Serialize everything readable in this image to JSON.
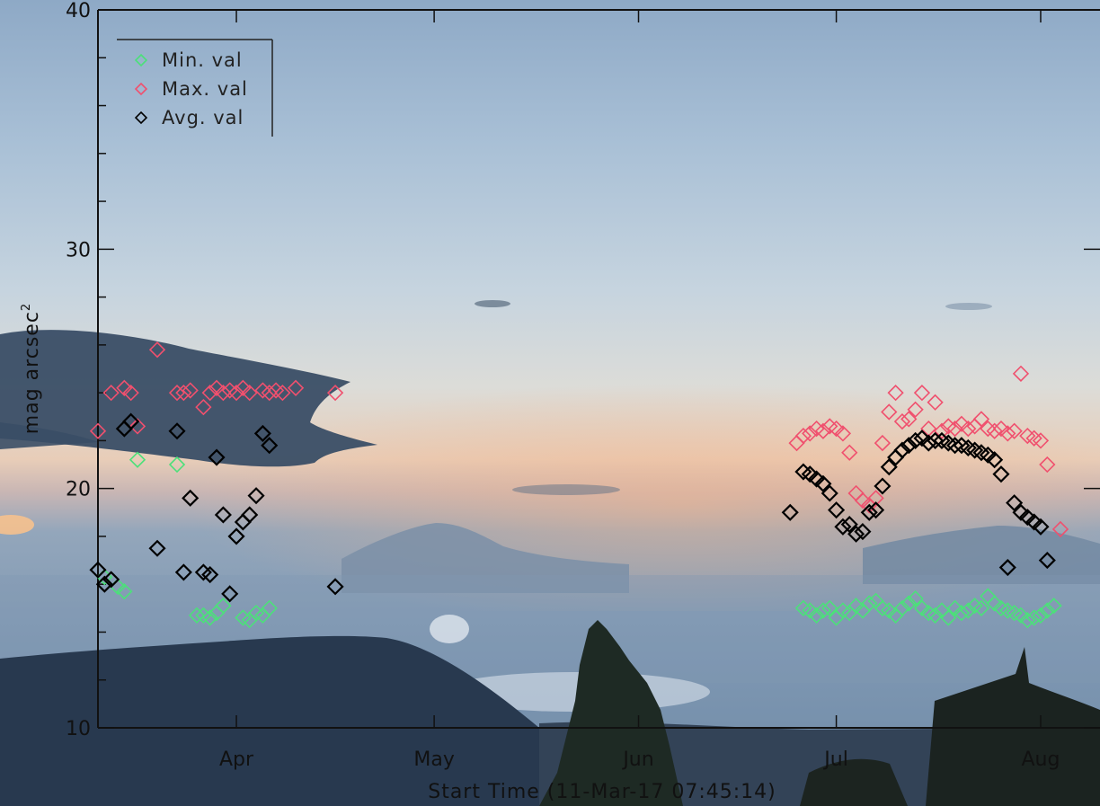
{
  "chart_data": {
    "type": "scatter",
    "title": "",
    "xlabel": "Start Time (11-Mar-17 07:45:14)",
    "ylabel": "mag arcsec",
    "ylabel_superscript": "2",
    "xlim": [
      "2017-03-11",
      "2017-08-10"
    ],
    "ylim": [
      10,
      40
    ],
    "x_ticks": [
      {
        "label": "Apr",
        "date": "2017-04-01"
      },
      {
        "label": "May",
        "date": "2017-05-01"
      },
      {
        "label": "Jun",
        "date": "2017-06-01"
      },
      {
        "label": "Jul",
        "date": "2017-07-01"
      },
      {
        "label": "Aug",
        "date": "2017-08-01"
      }
    ],
    "y_ticks": [
      10,
      20,
      30,
      40
    ],
    "grid": false,
    "legend": "top-left",
    "marker": "diamond",
    "series": [
      {
        "name": "Min. val",
        "color": "#4ce07a",
        "points": [
          [
            "2017-03-12",
            16.3
          ],
          [
            "2017-03-14",
            15.9
          ],
          [
            "2017-03-15",
            15.7
          ],
          [
            "2017-03-17",
            21.2
          ],
          [
            "2017-03-23",
            21.0
          ],
          [
            "2017-03-26",
            14.7
          ],
          [
            "2017-03-27",
            14.7
          ],
          [
            "2017-03-28",
            14.6
          ],
          [
            "2017-03-29",
            14.8
          ],
          [
            "2017-03-30",
            15.1
          ],
          [
            "2017-04-02",
            14.6
          ],
          [
            "2017-04-03",
            14.5
          ],
          [
            "2017-04-04",
            14.8
          ],
          [
            "2017-04-05",
            14.7
          ],
          [
            "2017-04-06",
            15.0
          ],
          [
            "2017-06-26",
            15.0
          ],
          [
            "2017-06-27",
            14.9
          ],
          [
            "2017-06-28",
            14.7
          ],
          [
            "2017-06-29",
            14.9
          ],
          [
            "2017-06-30",
            15.0
          ],
          [
            "2017-07-01",
            14.6
          ],
          [
            "2017-07-02",
            14.9
          ],
          [
            "2017-07-03",
            14.8
          ],
          [
            "2017-07-04",
            15.1
          ],
          [
            "2017-07-05",
            14.9
          ],
          [
            "2017-07-06",
            15.2
          ],
          [
            "2017-07-07",
            15.3
          ],
          [
            "2017-07-08",
            15.0
          ],
          [
            "2017-07-09",
            14.9
          ],
          [
            "2017-07-10",
            14.7
          ],
          [
            "2017-07-11",
            15.0
          ],
          [
            "2017-07-12",
            15.2
          ],
          [
            "2017-07-13",
            15.4
          ],
          [
            "2017-07-14",
            15.0
          ],
          [
            "2017-07-15",
            14.8
          ],
          [
            "2017-07-16",
            14.7
          ],
          [
            "2017-07-17",
            14.9
          ],
          [
            "2017-07-18",
            14.6
          ],
          [
            "2017-07-19",
            15.0
          ],
          [
            "2017-07-20",
            14.8
          ],
          [
            "2017-07-21",
            14.9
          ],
          [
            "2017-07-22",
            15.1
          ],
          [
            "2017-07-23",
            15.0
          ],
          [
            "2017-07-24",
            15.5
          ],
          [
            "2017-07-25",
            15.2
          ],
          [
            "2017-07-26",
            15.0
          ],
          [
            "2017-07-27",
            14.9
          ],
          [
            "2017-07-28",
            14.8
          ],
          [
            "2017-07-29",
            14.7
          ],
          [
            "2017-07-30",
            14.5
          ],
          [
            "2017-07-31",
            14.6
          ],
          [
            "2017-08-01",
            14.7
          ],
          [
            "2017-08-02",
            14.9
          ],
          [
            "2017-08-03",
            15.1
          ]
        ]
      },
      {
        "name": "Max. val",
        "color": "#f0506e",
        "points": [
          [
            "2017-03-11",
            22.4
          ],
          [
            "2017-03-13",
            24.0
          ],
          [
            "2017-03-15",
            24.2
          ],
          [
            "2017-03-16",
            24.0
          ],
          [
            "2017-03-17",
            22.6
          ],
          [
            "2017-03-20",
            25.8
          ],
          [
            "2017-03-23",
            24.0
          ],
          [
            "2017-03-24",
            24.0
          ],
          [
            "2017-03-25",
            24.1
          ],
          [
            "2017-03-27",
            23.4
          ],
          [
            "2017-03-28",
            24.0
          ],
          [
            "2017-03-29",
            24.2
          ],
          [
            "2017-03-30",
            24.0
          ],
          [
            "2017-03-31",
            24.1
          ],
          [
            "2017-04-01",
            24.0
          ],
          [
            "2017-04-02",
            24.2
          ],
          [
            "2017-04-03",
            24.0
          ],
          [
            "2017-04-05",
            24.1
          ],
          [
            "2017-04-06",
            24.0
          ],
          [
            "2017-04-07",
            24.1
          ],
          [
            "2017-04-08",
            24.0
          ],
          [
            "2017-04-10",
            24.2
          ],
          [
            "2017-04-16",
            24.0
          ],
          [
            "2017-06-25",
            21.9
          ],
          [
            "2017-06-26",
            22.2
          ],
          [
            "2017-06-27",
            22.3
          ],
          [
            "2017-06-28",
            22.5
          ],
          [
            "2017-06-29",
            22.4
          ],
          [
            "2017-06-30",
            22.6
          ],
          [
            "2017-07-01",
            22.5
          ],
          [
            "2017-07-02",
            22.3
          ],
          [
            "2017-07-03",
            21.5
          ],
          [
            "2017-07-04",
            19.8
          ],
          [
            "2017-07-05",
            19.5
          ],
          [
            "2017-07-06",
            19.3
          ],
          [
            "2017-07-07",
            19.6
          ],
          [
            "2017-07-08",
            21.9
          ],
          [
            "2017-07-09",
            23.2
          ],
          [
            "2017-07-10",
            24.0
          ],
          [
            "2017-07-11",
            22.8
          ],
          [
            "2017-07-12",
            22.9
          ],
          [
            "2017-07-13",
            23.3
          ],
          [
            "2017-07-14",
            24.0
          ],
          [
            "2017-07-15",
            22.5
          ],
          [
            "2017-07-16",
            23.6
          ],
          [
            "2017-07-17",
            22.4
          ],
          [
            "2017-07-18",
            22.6
          ],
          [
            "2017-07-19",
            22.5
          ],
          [
            "2017-07-20",
            22.7
          ],
          [
            "2017-07-21",
            22.5
          ],
          [
            "2017-07-22",
            22.6
          ],
          [
            "2017-07-23",
            22.9
          ],
          [
            "2017-07-24",
            22.5
          ],
          [
            "2017-07-25",
            22.4
          ],
          [
            "2017-07-26",
            22.5
          ],
          [
            "2017-07-27",
            22.3
          ],
          [
            "2017-07-28",
            22.4
          ],
          [
            "2017-07-29",
            24.8
          ],
          [
            "2017-07-30",
            22.2
          ],
          [
            "2017-07-31",
            22.1
          ],
          [
            "2017-08-01",
            22.0
          ],
          [
            "2017-08-02",
            21.0
          ],
          [
            "2017-08-04",
            18.3
          ]
        ]
      },
      {
        "name": "Avg. val",
        "color": "#000000",
        "points": [
          [
            "2017-03-11",
            16.6
          ],
          [
            "2017-03-12",
            16.0
          ],
          [
            "2017-03-13",
            16.2
          ],
          [
            "2017-03-15",
            22.5
          ],
          [
            "2017-03-16",
            22.8
          ],
          [
            "2017-03-20",
            17.5
          ],
          [
            "2017-03-23",
            22.4
          ],
          [
            "2017-03-24",
            16.5
          ],
          [
            "2017-03-25",
            19.6
          ],
          [
            "2017-03-27",
            16.5
          ],
          [
            "2017-03-28",
            16.4
          ],
          [
            "2017-03-29",
            21.3
          ],
          [
            "2017-03-30",
            18.9
          ],
          [
            "2017-03-31",
            15.6
          ],
          [
            "2017-04-01",
            18.0
          ],
          [
            "2017-04-02",
            18.6
          ],
          [
            "2017-04-03",
            18.9
          ],
          [
            "2017-04-04",
            19.7
          ],
          [
            "2017-04-05",
            22.3
          ],
          [
            "2017-04-06",
            21.8
          ],
          [
            "2017-04-16",
            15.9
          ],
          [
            "2017-06-24",
            19.0
          ],
          [
            "2017-06-26",
            20.7
          ],
          [
            "2017-06-27",
            20.6
          ],
          [
            "2017-06-28",
            20.4
          ],
          [
            "2017-06-29",
            20.2
          ],
          [
            "2017-06-30",
            19.8
          ],
          [
            "2017-07-01",
            19.1
          ],
          [
            "2017-07-02",
            18.4
          ],
          [
            "2017-07-03",
            18.5
          ],
          [
            "2017-07-04",
            18.1
          ],
          [
            "2017-07-05",
            18.2
          ],
          [
            "2017-07-06",
            19.0
          ],
          [
            "2017-07-07",
            19.1
          ],
          [
            "2017-07-08",
            20.1
          ],
          [
            "2017-07-09",
            20.9
          ],
          [
            "2017-07-10",
            21.3
          ],
          [
            "2017-07-11",
            21.6
          ],
          [
            "2017-07-12",
            21.8
          ],
          [
            "2017-07-13",
            22.0
          ],
          [
            "2017-07-14",
            22.1
          ],
          [
            "2017-07-15",
            21.9
          ],
          [
            "2017-07-16",
            22.0
          ],
          [
            "2017-07-17",
            22.0
          ],
          [
            "2017-07-18",
            21.9
          ],
          [
            "2017-07-19",
            21.8
          ],
          [
            "2017-07-20",
            21.8
          ],
          [
            "2017-07-21",
            21.7
          ],
          [
            "2017-07-22",
            21.6
          ],
          [
            "2017-07-23",
            21.5
          ],
          [
            "2017-07-24",
            21.4
          ],
          [
            "2017-07-25",
            21.2
          ],
          [
            "2017-07-26",
            20.6
          ],
          [
            "2017-07-27",
            16.7
          ],
          [
            "2017-07-28",
            19.4
          ],
          [
            "2017-07-29",
            19.0
          ],
          [
            "2017-07-30",
            18.8
          ],
          [
            "2017-07-31",
            18.6
          ],
          [
            "2017-08-01",
            18.4
          ],
          [
            "2017-08-02",
            17.0
          ]
        ]
      }
    ]
  }
}
